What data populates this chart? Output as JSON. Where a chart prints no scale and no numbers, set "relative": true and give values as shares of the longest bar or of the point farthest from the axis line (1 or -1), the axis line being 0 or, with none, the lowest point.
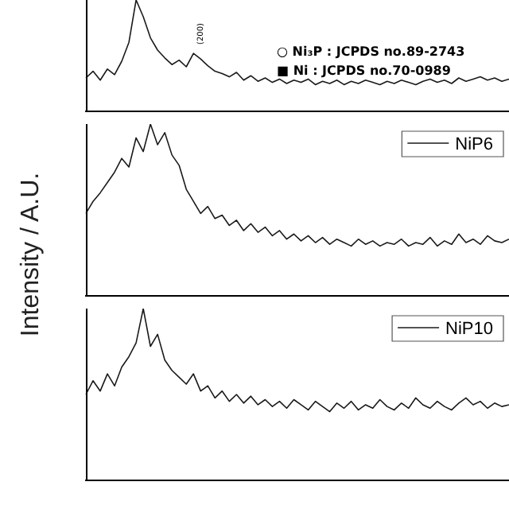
{
  "chart_data": [
    {
      "type": "line",
      "relative": true,
      "categories": [
        null,
        null,
        null,
        null,
        null,
        null,
        null,
        null,
        null,
        null,
        null,
        null,
        null,
        null,
        null,
        null,
        null,
        null,
        null,
        null,
        null,
        null,
        null,
        null,
        null,
        null,
        null,
        null,
        null,
        null,
        null,
        null,
        null,
        null,
        null,
        null,
        null,
        null,
        null,
        null,
        null,
        null,
        null,
        null,
        null,
        null,
        null,
        null,
        null,
        null,
        null,
        null,
        null,
        null,
        null,
        null,
        null,
        null,
        null,
        null
      ],
      "series": [
        {
          "color": "#1a1a1a",
          "values": [
            0.3,
            0.36,
            0.28,
            0.38,
            0.33,
            0.45,
            0.62,
            1,
            0.85,
            0.66,
            0.55,
            0.48,
            0.42,
            0.46,
            0.4,
            0.52,
            0.47,
            0.41,
            0.36,
            0.34,
            0.31,
            0.35,
            0.28,
            0.32,
            0.27,
            0.3,
            0.26,
            0.29,
            0.25,
            0.28,
            0.26,
            0.29,
            0.24,
            0.27,
            0.25,
            0.28,
            0.24,
            0.27,
            0.25,
            0.28,
            0.26,
            0.24,
            0.27,
            0.25,
            0.28,
            0.26,
            0.24,
            0.27,
            0.29,
            0.26,
            0.28,
            0.25,
            0.3,
            0.27,
            0.29,
            0.31,
            0.28,
            0.3,
            0.27,
            0.29
          ]
        }
      ],
      "annotations": [
        "○ Ni₃P : JCPDS no.89-2743",
        "■ Ni : JCPDS no.70-0989",
        "(200)"
      ],
      "tick_labels": false,
      "grid": false,
      "legend": false,
      "marker": "none",
      "line_style": "solid"
    },
    {
      "type": "line",
      "relative": true,
      "ylabel": "Intensity / A.U.",
      "categories": [
        null,
        null,
        null,
        null,
        null,
        null,
        null,
        null,
        null,
        null,
        null,
        null,
        null,
        null,
        null,
        null,
        null,
        null,
        null,
        null,
        null,
        null,
        null,
        null,
        null,
        null,
        null,
        null,
        null,
        null,
        null,
        null,
        null,
        null,
        null,
        null,
        null,
        null,
        null,
        null,
        null,
        null,
        null,
        null,
        null,
        null,
        null,
        null,
        null,
        null,
        null,
        null,
        null,
        null,
        null,
        null,
        null,
        null,
        null,
        null
      ],
      "series": [
        {
          "name": "NiP6",
          "color": "#1a1a1a",
          "values": [
            0.48,
            0.55,
            0.6,
            0.66,
            0.72,
            0.8,
            0.75,
            0.92,
            0.84,
            1,
            0.88,
            0.95,
            0.82,
            0.76,
            0.62,
            0.55,
            0.48,
            0.52,
            0.45,
            0.47,
            0.41,
            0.44,
            0.38,
            0.42,
            0.37,
            0.4,
            0.35,
            0.38,
            0.33,
            0.36,
            0.32,
            0.35,
            0.31,
            0.34,
            0.3,
            0.33,
            0.31,
            0.29,
            0.33,
            0.3,
            0.32,
            0.29,
            0.31,
            0.3,
            0.33,
            0.29,
            0.31,
            0.3,
            0.34,
            0.29,
            0.32,
            0.3,
            0.36,
            0.31,
            0.33,
            0.3,
            0.35,
            0.32,
            0.31,
            0.33
          ]
        }
      ],
      "tick_labels": false,
      "grid": false,
      "legend": "top right",
      "marker": "none",
      "line_style": "solid"
    },
    {
      "type": "line",
      "relative": true,
      "categories": [
        null,
        null,
        null,
        null,
        null,
        null,
        null,
        null,
        null,
        null,
        null,
        null,
        null,
        null,
        null,
        null,
        null,
        null,
        null,
        null,
        null,
        null,
        null,
        null,
        null,
        null,
        null,
        null,
        null,
        null,
        null,
        null,
        null,
        null,
        null,
        null,
        null,
        null,
        null,
        null,
        null,
        null,
        null,
        null,
        null,
        null,
        null,
        null,
        null,
        null,
        null,
        null,
        null,
        null,
        null,
        null,
        null,
        null,
        null,
        null
      ],
      "series": [
        {
          "name": "NiP10",
          "color": "#1a1a1a",
          "values": [
            0.5,
            0.58,
            0.52,
            0.62,
            0.55,
            0.66,
            0.72,
            0.8,
            1,
            0.78,
            0.85,
            0.7,
            0.64,
            0.6,
            0.56,
            0.62,
            0.52,
            0.55,
            0.48,
            0.52,
            0.46,
            0.5,
            0.45,
            0.49,
            0.44,
            0.47,
            0.43,
            0.46,
            0.42,
            0.47,
            0.44,
            0.41,
            0.46,
            0.43,
            0.4,
            0.45,
            0.42,
            0.46,
            0.41,
            0.44,
            0.42,
            0.47,
            0.43,
            0.41,
            0.45,
            0.42,
            0.48,
            0.44,
            0.42,
            0.46,
            0.43,
            0.41,
            0.45,
            0.48,
            0.44,
            0.46,
            0.42,
            0.45,
            0.43,
            0.44
          ]
        }
      ],
      "tick_labels": false,
      "grid": false,
      "legend": "top right",
      "marker": "none",
      "line_style": "solid"
    }
  ]
}
